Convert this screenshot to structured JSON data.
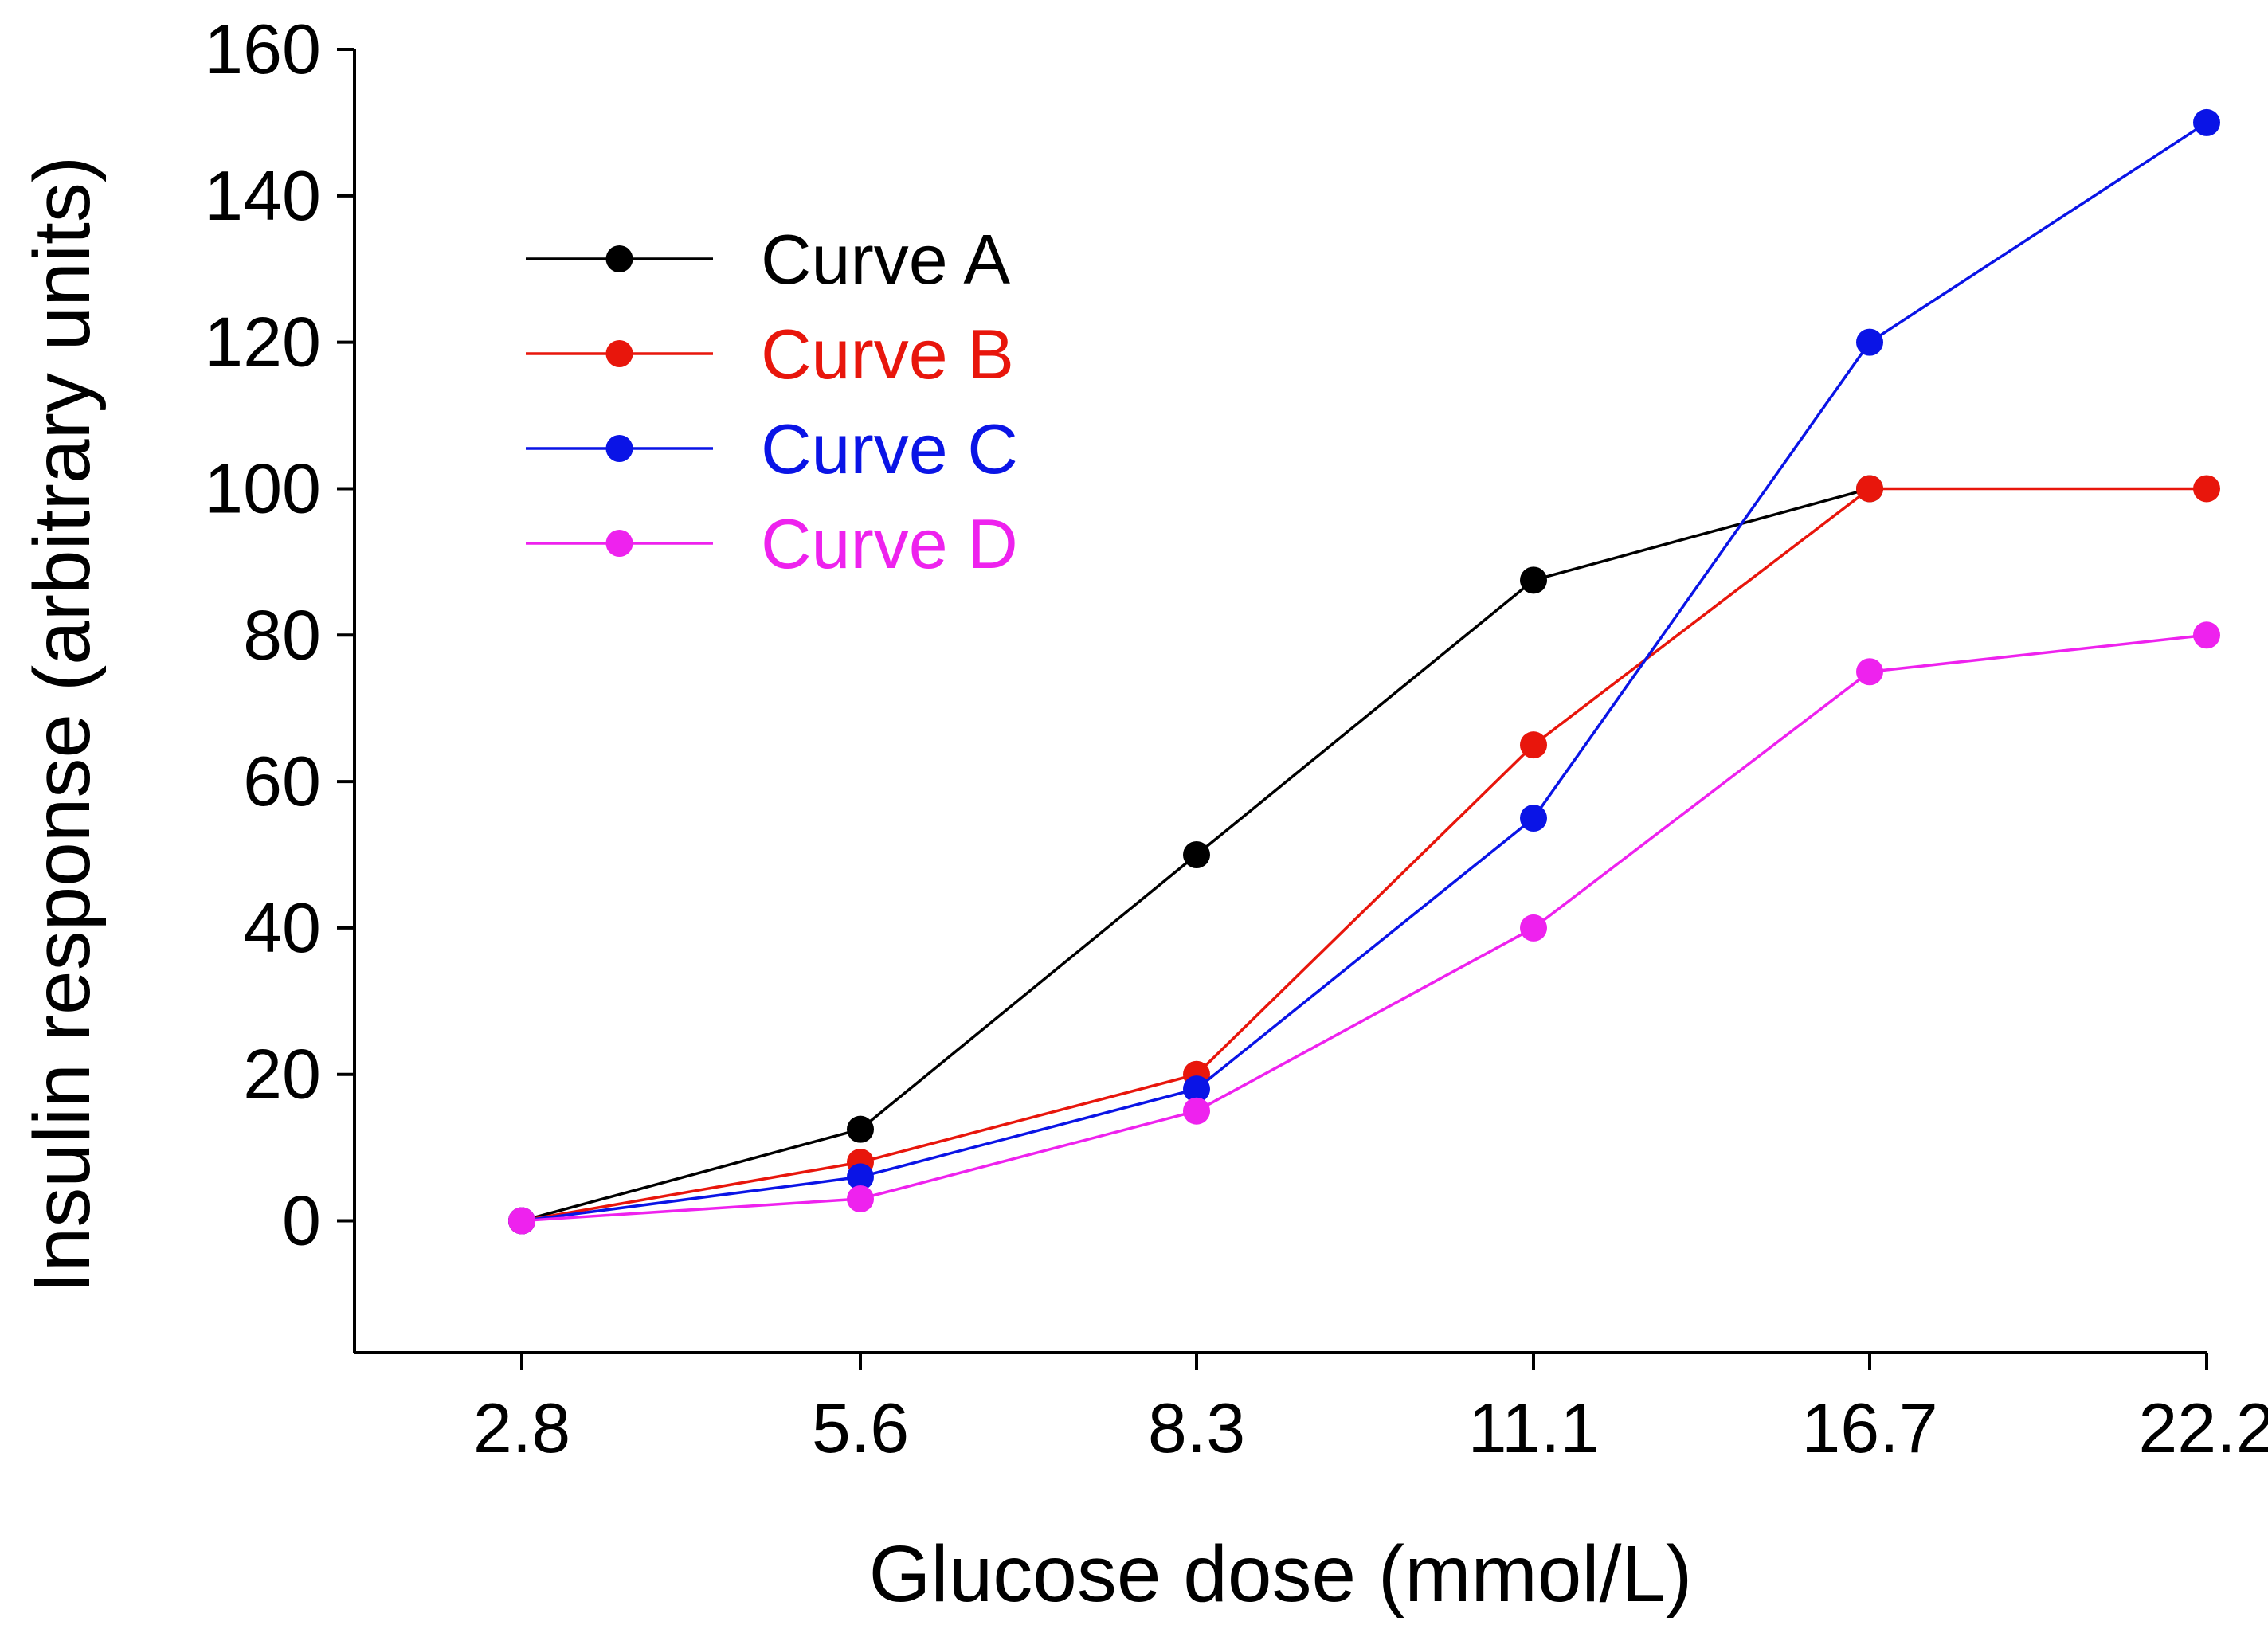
{
  "chart_data": {
    "type": "line",
    "xlabel": "Glucose dose (mmol/L)",
    "ylabel": "Insulin response (arbitrary units)",
    "categories": [
      "2.8",
      "5.6",
      "8.3",
      "11.1",
      "16.7",
      "22.2"
    ],
    "ylim": [
      -18,
      160
    ],
    "yticks": [
      "0",
      "20",
      "40",
      "60",
      "80",
      "100",
      "120",
      "140",
      "160"
    ],
    "grid": false,
    "legend_position": "top-left",
    "series": [
      {
        "name": "Curve A",
        "color": "#000000",
        "values": [
          0,
          12.5,
          50,
          87.5,
          100,
          null
        ]
      },
      {
        "name": "Curve B",
        "color": "#e8160c",
        "values": [
          0,
          8,
          20,
          65,
          100,
          100
        ]
      },
      {
        "name": "Curve C",
        "color": "#0a14e6",
        "values": [
          0,
          6,
          18,
          55,
          120,
          150
        ]
      },
      {
        "name": "Curve D",
        "color": "#ee22ee",
        "values": [
          0,
          3,
          15,
          40,
          75,
          80
        ]
      }
    ]
  }
}
